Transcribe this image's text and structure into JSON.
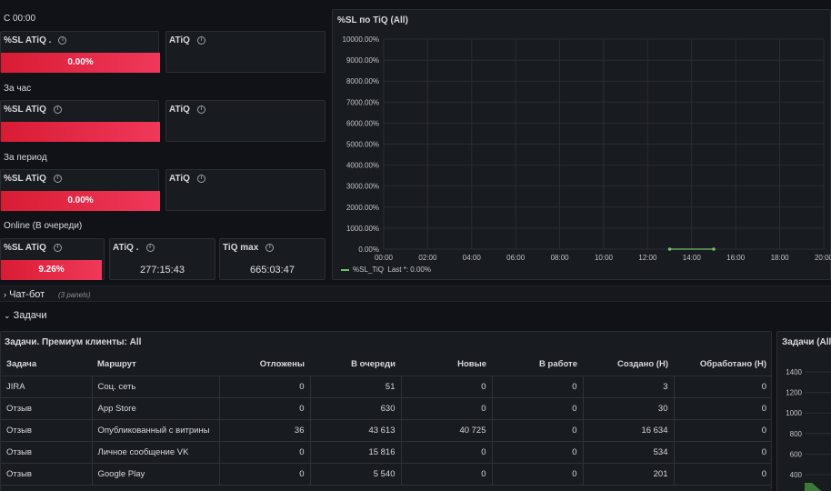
{
  "sections": {
    "since_midnight": "С 00:00",
    "per_hour": "За час",
    "per_period": "За период",
    "online": "Online (В очереди)"
  },
  "row1": {
    "sl_title": "%SL ATiQ .",
    "sl_value": "0.00%",
    "atiq_title": "ATiQ"
  },
  "row2": {
    "sl_title": "%SL ATiQ",
    "sl_value": "",
    "atiq_title": "ATiQ"
  },
  "row3": {
    "sl_title": "%SL ATiQ",
    "sl_value": "0.00%",
    "atiq_title": "ATiQ"
  },
  "row4": {
    "sl_title": "%SL ATiQ",
    "sl_value": "9.26%",
    "sl_fill": 0.98,
    "atiq_title": "ATiQ .",
    "atiq_value": "277:15:43",
    "tiq_title": "TiQ max",
    "tiq_value": "665:03:47"
  },
  "chart_panel": {
    "title": "%SL по TiQ (All)",
    "legend_series": "%SL_TiQ",
    "legend_last": "Last *: 0.00%"
  },
  "chart_data": {
    "type": "line",
    "title": "%SL по TiQ (All)",
    "x_ticks": [
      "00:00",
      "02:00",
      "04:00",
      "06:00",
      "08:00",
      "10:00",
      "12:00",
      "14:00",
      "16:00",
      "18:00",
      "20:00"
    ],
    "y_ticks": [
      "0.00%",
      "1000.00%",
      "2000.00%",
      "3000.00%",
      "4000.00%",
      "5000.00%",
      "6000.00%",
      "7000.00%",
      "8000.00%",
      "9000.00%",
      "10000.00%"
    ],
    "ylim": [
      0,
      10000
    ],
    "xlim_hours": [
      0,
      20
    ],
    "series": [
      {
        "name": "%SL_TiQ",
        "color": "#73bf69",
        "x_hours": [
          13.0,
          15.0
        ],
        "values": [
          0,
          0
        ]
      }
    ]
  },
  "chatbot_row": {
    "title": "Чат-бот",
    "meta": "(3 panels)"
  },
  "tasks_row": {
    "title": "Задачи"
  },
  "table_panel": {
    "title": "Задачи. Премиум клиенты: All",
    "columns": [
      "Задача",
      "Маршрут",
      "Отложены",
      "В очереди",
      "Новые",
      "В работе",
      "Создано (Н)",
      "Обработано (Н)"
    ],
    "rows": [
      [
        "JIRA",
        "Соц. сеть",
        "0",
        "51",
        "0",
        "0",
        "3",
        "0"
      ],
      [
        "Отзыв",
        "App Store",
        "0",
        "630",
        "0",
        "0",
        "30",
        "0"
      ],
      [
        "Отзыв",
        "Опубликованный с витрины",
        "36",
        "43 613",
        "40 725",
        "0",
        "16 634",
        "0"
      ],
      [
        "Отзыв",
        "Личное сообщение VK",
        "0",
        "15 816",
        "0",
        "0",
        "534",
        "0"
      ],
      [
        "Отзыв",
        "Google Play",
        "0",
        "5 540",
        "0",
        "0",
        "201",
        "0"
      ]
    ]
  },
  "side_panel": {
    "title": "Задачи (All)",
    "y_ticks": [
      "1400",
      "1200",
      "1000",
      "800",
      "600",
      "400"
    ]
  }
}
